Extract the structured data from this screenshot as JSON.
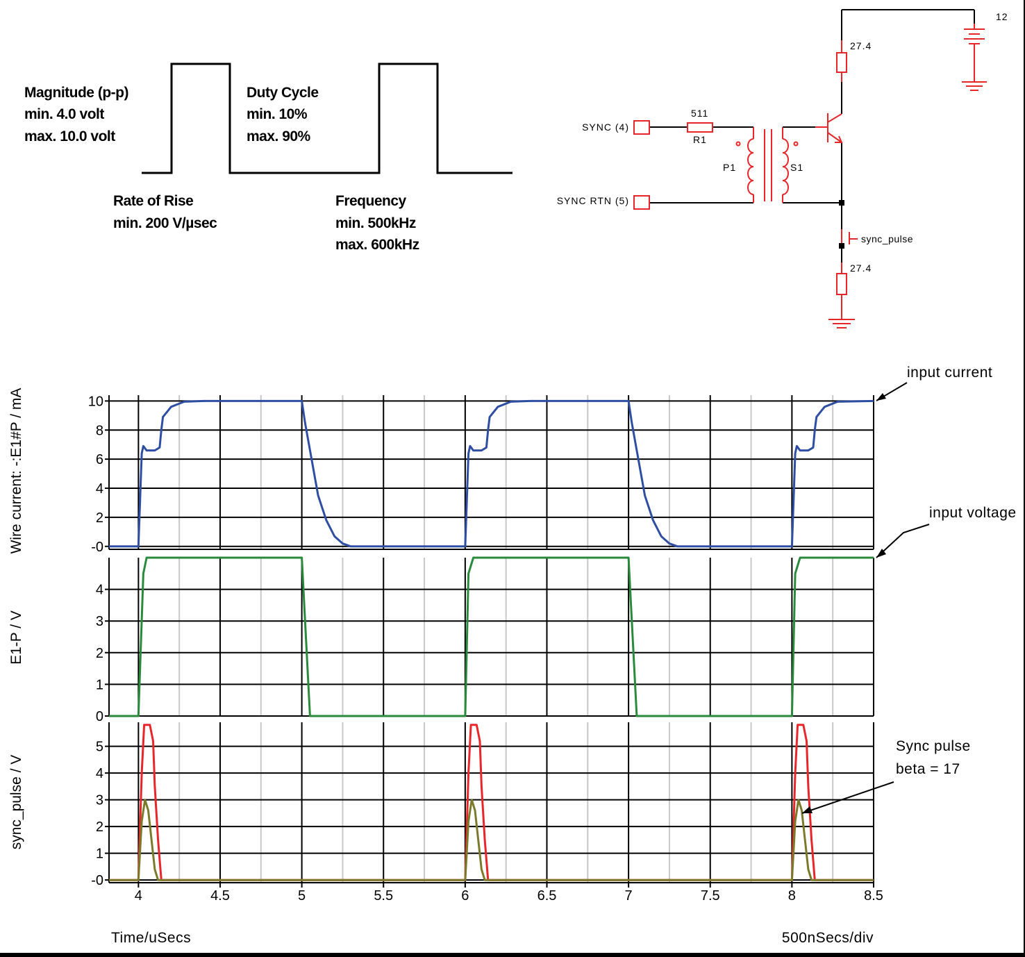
{
  "timing_spec": {
    "magnitude": [
      "Magnitude (p-p)",
      "min.  4.0 volt",
      "max. 10.0 volt"
    ],
    "duty_cycle": [
      "Duty Cycle",
      "min.  10%",
      "max. 90%"
    ],
    "rate_of_rise": [
      "Rate of Rise",
      "min. 200 V/µsec"
    ],
    "frequency": [
      "Frequency",
      "min. 500kHz",
      "max. 600kHz"
    ]
  },
  "schematic": {
    "supply_label": "12",
    "r_collector_value": "27.4",
    "r_emitter_value": "27.4",
    "r1_value": "511",
    "r1_ref": "R1",
    "sync_label": "SYNC (4)",
    "sync_rtn_label": "SYNC RTN (5)",
    "p1_label": "P1",
    "s1_label": "S1",
    "probe_label": "sync_pulse",
    "colors": {
      "component": "#e8262a",
      "wire": "#000000"
    }
  },
  "chart_data": [
    {
      "type": "line",
      "ylabel": "Wire current: -:E1#P / mA",
      "ylim": [
        -0.2,
        10.4
      ],
      "yticks": [
        "-0",
        "2",
        "4",
        "6",
        "8",
        "10"
      ],
      "grid": true,
      "series": [
        {
          "color": "#2e4ea3",
          "x": [
            3.82,
            4.0,
            4.02,
            4.03,
            4.05,
            4.1,
            4.13,
            4.14,
            4.15,
            4.2,
            4.28,
            4.4,
            5.0,
            5.02,
            5.06,
            5.1,
            5.15,
            5.2,
            5.25,
            5.3,
            6.0,
            6.02,
            6.03,
            6.05,
            6.1,
            6.13,
            6.14,
            6.15,
            6.2,
            6.28,
            6.4,
            7.0,
            7.02,
            7.06,
            7.1,
            7.15,
            7.2,
            7.25,
            7.3,
            8.0,
            8.02,
            8.03,
            8.05,
            8.1,
            8.13,
            8.14,
            8.15,
            8.2,
            8.28,
            8.5
          ],
          "y": [
            0,
            0,
            6.4,
            6.9,
            6.6,
            6.6,
            6.8,
            8.0,
            8.9,
            9.6,
            9.95,
            10,
            10,
            8.5,
            6.0,
            3.5,
            1.8,
            0.7,
            0.2,
            0,
            0,
            6.4,
            6.9,
            6.6,
            6.6,
            6.8,
            8.0,
            8.9,
            9.6,
            9.95,
            10,
            10,
            8.5,
            6.0,
            3.5,
            1.8,
            0.7,
            0.2,
            0,
            0,
            6.4,
            6.9,
            6.6,
            6.6,
            6.8,
            8.0,
            8.9,
            9.6,
            9.95,
            10
          ]
        }
      ],
      "annotation": "input current"
    },
    {
      "type": "line",
      "ylabel": "E1-P / V",
      "ylim": [
        0,
        5
      ],
      "yticks": [
        "0",
        "1",
        "2",
        "3",
        "4"
      ],
      "grid": true,
      "series": [
        {
          "color": "#2a8a3c",
          "x": [
            3.82,
            4.0,
            4.03,
            4.05,
            5.0,
            5.05,
            6.0,
            6.02,
            6.05,
            7.0,
            7.05,
            8.0,
            8.02,
            8.05,
            8.5
          ],
          "y": [
            0,
            0,
            4.5,
            5,
            5,
            0,
            0,
            4.5,
            5,
            5,
            0,
            0,
            4.5,
            5,
            5
          ]
        }
      ],
      "annotation": "input voltage"
    },
    {
      "type": "line",
      "ylabel": "sync_pulse / V",
      "xlabel": "Time/uSecs",
      "ylim": [
        -0.1,
        5.9
      ],
      "yticks": [
        "-0",
        "1",
        "2",
        "3",
        "4",
        "5"
      ],
      "xlim": [
        3.82,
        8.5
      ],
      "xticks": [
        4,
        4.5,
        5,
        5.5,
        6,
        6.5,
        7,
        7.5,
        8,
        8.5
      ],
      "xtick_labels": [
        "4",
        "4.5",
        "5",
        "5.5",
        "6",
        "6.5",
        "7",
        "7.5",
        "8",
        "8.5"
      ],
      "grid": true,
      "scale_label": "500nSecs/div",
      "series": [
        {
          "color": "#e8262a",
          "x": [
            3.82,
            4.0,
            4.02,
            4.035,
            4.05,
            4.07,
            4.09,
            4.1,
            4.12,
            4.14,
            4.5,
            6.0,
            6.02,
            6.035,
            6.05,
            6.07,
            6.09,
            6.1,
            6.12,
            6.14,
            6.5,
            8.0,
            8.02,
            8.035,
            8.05,
            8.07,
            8.09,
            8.1,
            8.12,
            8.14,
            8.5
          ],
          "y": [
            0,
            0,
            4.0,
            5.8,
            5.8,
            5.8,
            5.2,
            3.5,
            1.5,
            0,
            0,
            0,
            4.0,
            5.8,
            5.8,
            5.8,
            5.2,
            3.5,
            1.5,
            0,
            0,
            0,
            4.0,
            5.8,
            5.8,
            5.8,
            5.2,
            3.5,
            1.5,
            0,
            0
          ]
        },
        {
          "color": "#7a7a2a",
          "x": [
            3.82,
            4.0,
            4.02,
            4.04,
            4.06,
            4.08,
            4.1,
            4.12,
            6.0,
            6.02,
            6.04,
            6.06,
            6.08,
            6.1,
            6.12,
            8.0,
            8.02,
            8.04,
            8.06,
            8.08,
            8.1,
            8.12,
            8.5
          ],
          "y": [
            0,
            0,
            2.2,
            3.0,
            2.6,
            1.5,
            0.4,
            0,
            0,
            2.2,
            3.0,
            2.6,
            1.5,
            0.4,
            0,
            0,
            2.2,
            3.0,
            2.6,
            1.5,
            0.4,
            0,
            0
          ]
        }
      ],
      "annotation": [
        "Sync pulse",
        "beta = 17"
      ]
    }
  ]
}
